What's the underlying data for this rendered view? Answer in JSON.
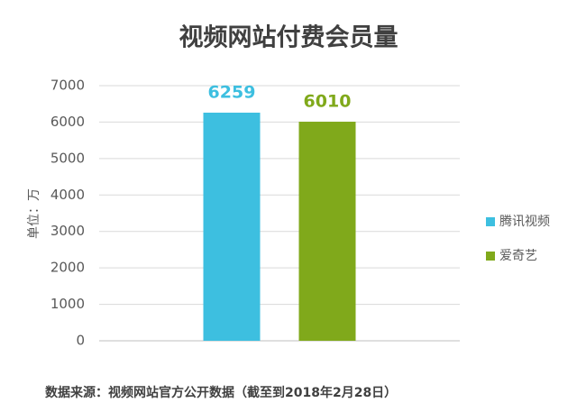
{
  "chart_data": {
    "type": "bar",
    "title": "视频网站付费会员量",
    "y_label": "单位：万",
    "categories": [
      null
    ],
    "series": [
      {
        "name": "腾讯视频",
        "color": "#3dbfe0",
        "values": [
          6259
        ]
      },
      {
        "name": "爱奇艺",
        "color": "#80a91b",
        "values": [
          6010
        ]
      }
    ],
    "ylim": [
      0,
      7000
    ],
    "yticks": [
      0,
      1000,
      2000,
      3000,
      4000,
      5000,
      6000,
      7000
    ],
    "grid": true,
    "legend": "right",
    "source": "数据来源：视频网站官方公开数据（截至到2018年2月28日）"
  }
}
